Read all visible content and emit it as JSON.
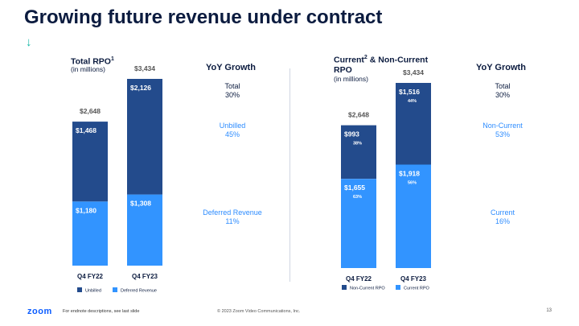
{
  "page": {
    "title": "Growing future revenue under contract",
    "arrow_glyph": "↓",
    "footer_logo": "zoom",
    "footer_note": "For endnote descriptions, see last slide",
    "footer_copyright": "© 2023 Zoom Video Communications, Inc.",
    "page_number": "13"
  },
  "colors": {
    "dark_blue": "#234b8c",
    "light_blue": "#3294ff",
    "accent_blue": "#2d8cff",
    "text": "#0b1b3f",
    "teal": "#14b8a6"
  },
  "left_panel": {
    "title": "Total RPO",
    "title_sup": "1",
    "subtitle": "(in millions)",
    "yoy_heading": "YoY Growth",
    "yoy_total_label": "Total",
    "yoy_total_value": "30%",
    "yoy_top_label": "Unbilled",
    "yoy_top_value": "45%",
    "yoy_bottom_label": "Deferred Revenue",
    "yoy_bottom_value": "11%"
  },
  "right_panel": {
    "title_a": "Current",
    "title_sup": "2",
    "title_b": " & Non-Current",
    "title_c": "RPO",
    "subtitle": "(in millions)",
    "yoy_heading": "YoY Growth",
    "yoy_total_label": "Total",
    "yoy_total_value": "30%",
    "yoy_top_label": "Non-Current",
    "yoy_top_value": "53%",
    "yoy_bottom_label": "Current",
    "yoy_bottom_value": "16%"
  },
  "chart_data": [
    {
      "type": "bar",
      "stacked": true,
      "title": "Total RPO (in millions)",
      "categories": [
        "Q4 FY22",
        "Q4 FY23"
      ],
      "totals": [
        "$2,648",
        "$3,434"
      ],
      "total_values": [
        2648,
        3434
      ],
      "series": [
        {
          "name": "Deferred Revenue",
          "values": [
            1180,
            1308
          ],
          "labels": [
            "$1,180",
            "$1,308"
          ],
          "pct_labels": [
            "",
            ""
          ],
          "color": "#3294ff"
        },
        {
          "name": "Unbilled",
          "values": [
            1468,
            2126
          ],
          "labels": [
            "$1,468",
            "$2,126"
          ],
          "pct_labels": [
            "",
            ""
          ],
          "color": "#234b8c"
        }
      ],
      "legend": [
        {
          "name": "Unbilled",
          "color": "#234b8c"
        },
        {
          "name": "Deferred Revenue",
          "color": "#3294ff"
        }
      ],
      "ylim": [
        0,
        3434
      ]
    },
    {
      "type": "bar",
      "stacked": true,
      "title": "Current & Non-Current RPO (in millions)",
      "categories": [
        "Q4 FY22",
        "Q4 FY23"
      ],
      "totals": [
        "$2,648",
        "$3,434"
      ],
      "total_values": [
        2648,
        3434
      ],
      "series": [
        {
          "name": "Current RPO",
          "values": [
            1655,
            1918
          ],
          "labels": [
            "$1,655",
            "$1,918"
          ],
          "pct_labels": [
            "63%",
            "56%"
          ],
          "color": "#3294ff"
        },
        {
          "name": "Non-Current RPO",
          "values": [
            993,
            1516
          ],
          "labels": [
            "$993",
            "$1,516"
          ],
          "pct_labels": [
            "38%",
            "44%"
          ],
          "color": "#234b8c"
        }
      ],
      "legend": [
        {
          "name": "Non-Current RPO",
          "color": "#234b8c"
        },
        {
          "name": "Current RPO",
          "color": "#3294ff"
        }
      ],
      "ylim": [
        0,
        3434
      ]
    }
  ]
}
